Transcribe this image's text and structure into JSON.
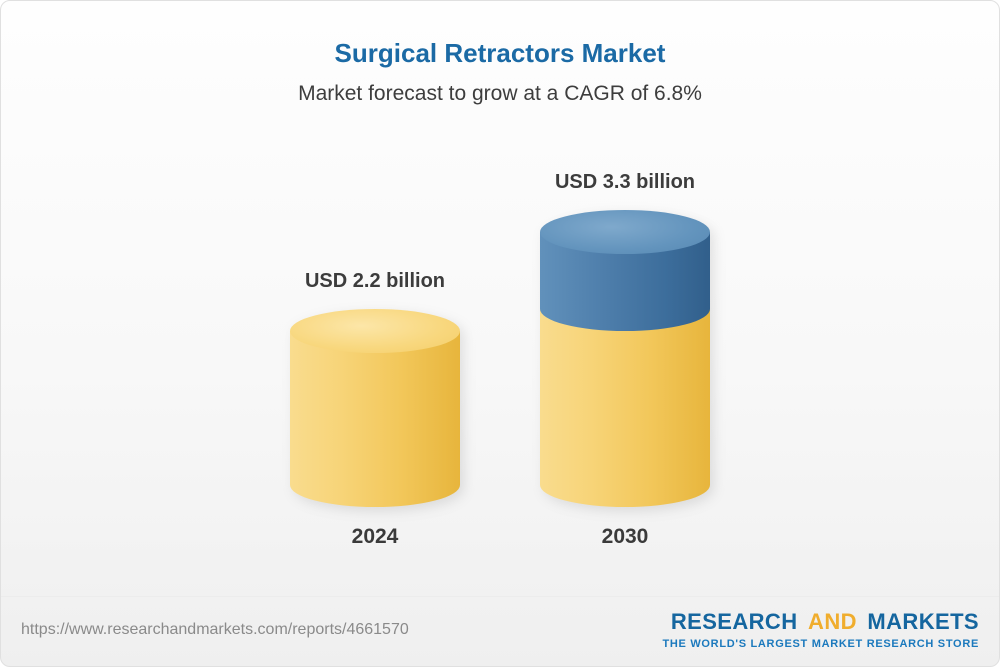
{
  "header": {
    "title": "Surgical Retractors Market",
    "subtitle": "Market forecast to grow at a CAGR of 6.8%"
  },
  "chart_data": {
    "type": "bar",
    "title": "Surgical Retractors Market",
    "subtitle": "Market forecast to grow at a CAGR of 6.8%",
    "unit": "USD billion",
    "cagr": "6.8%",
    "categories": [
      "2024",
      "2030"
    ],
    "values": [
      2.2,
      3.3
    ],
    "bars": [
      {
        "category": "2024",
        "label": "USD 2.2 billion",
        "total": 2.2,
        "segments": [
          {
            "value": 2.2,
            "color": "gold"
          }
        ]
      },
      {
        "category": "2030",
        "label": "USD 3.3 billion",
        "total": 3.3,
        "segments": [
          {
            "value": 2.2,
            "color": "gold"
          },
          {
            "value": 1.1,
            "color": "blue"
          }
        ]
      }
    ],
    "colors": {
      "gold": "#f2c75a",
      "blue": "#3c6d9b",
      "title_blue": "#1b6aa5"
    },
    "legend_position": "none",
    "grid": false
  },
  "footer": {
    "url": "https://www.researchandmarkets.com/reports/4661570",
    "logo": {
      "part1": "RESEARCH",
      "part2": "AND",
      "part3": "MARKETS",
      "tagline": "THE WORLD'S LARGEST MARKET RESEARCH STORE"
    }
  }
}
